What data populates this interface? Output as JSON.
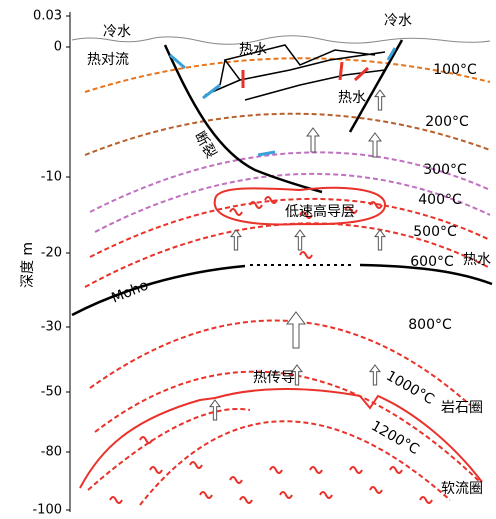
{
  "axis": {
    "label": "深度 m",
    "ticks": [
      "0.03",
      "0",
      "-10",
      "-20",
      "-30",
      "-50",
      "-80",
      "-100"
    ]
  },
  "labels": [
    "冷水",
    "冷水",
    "热水",
    "热对流",
    "热水",
    "断裂",
    "100°C",
    "200°C",
    "300°C",
    "400°C",
    "500°C",
    "600°C",
    "热水",
    "Moho",
    "低速高导层",
    "800°C",
    "热传导",
    "1000°C",
    "岩石圈",
    "1200°C",
    "软流圈"
  ]
}
